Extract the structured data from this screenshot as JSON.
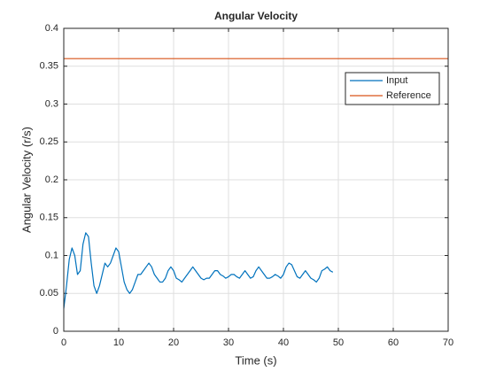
{
  "chart_data": {
    "type": "line",
    "title": "Angular Velocity",
    "xlabel": "Time (s)",
    "ylabel": "Angular Velocity (r/s)",
    "xlim": [
      0,
      70
    ],
    "xticks": [
      0,
      10,
      20,
      30,
      40,
      50,
      60,
      70
    ],
    "ylim": [
      0,
      0.4
    ],
    "yticks": [
      0,
      0.05,
      0.1,
      0.15,
      0.2,
      0.25,
      0.3,
      0.35,
      0.4
    ],
    "grid": true,
    "legend": "northeast",
    "series": [
      {
        "name": "Input",
        "color": "#0072bd",
        "x": [
          0,
          0.5,
          1,
          1.5,
          2,
          2.5,
          3,
          3.5,
          4,
          4.5,
          5,
          5.5,
          6,
          6.5,
          7,
          7.5,
          8,
          8.5,
          9,
          9.5,
          10,
          10.5,
          11,
          11.5,
          12,
          12.5,
          13,
          13.5,
          14,
          14.5,
          15,
          15.5,
          16,
          16.5,
          17,
          17.5,
          18,
          18.5,
          19,
          19.5,
          20,
          20.5,
          21,
          21.5,
          22,
          22.5,
          23,
          23.5,
          24,
          24.5,
          25,
          25.5,
          26,
          26.5,
          27,
          27.5,
          28,
          28.5,
          29,
          29.5,
          30,
          30.5,
          31,
          31.5,
          32,
          32.5,
          33,
          33.5,
          34,
          34.5,
          35,
          35.5,
          36,
          36.5,
          37,
          37.5,
          38,
          38.5,
          39,
          39.5,
          40,
          40.5,
          41,
          41.5,
          42,
          42.5,
          43,
          43.5,
          44,
          44.5,
          45,
          45.5,
          46,
          46.5,
          47,
          47.5,
          48,
          48.5,
          49
        ],
        "values": [
          0.03,
          0.06,
          0.095,
          0.11,
          0.1,
          0.075,
          0.08,
          0.115,
          0.13,
          0.125,
          0.09,
          0.06,
          0.05,
          0.06,
          0.075,
          0.09,
          0.085,
          0.09,
          0.1,
          0.11,
          0.105,
          0.085,
          0.065,
          0.055,
          0.05,
          0.055,
          0.065,
          0.075,
          0.075,
          0.08,
          0.085,
          0.09,
          0.085,
          0.075,
          0.07,
          0.065,
          0.065,
          0.07,
          0.08,
          0.085,
          0.08,
          0.07,
          0.068,
          0.065,
          0.07,
          0.075,
          0.08,
          0.085,
          0.08,
          0.075,
          0.07,
          0.068,
          0.07,
          0.07,
          0.075,
          0.08,
          0.08,
          0.075,
          0.073,
          0.07,
          0.072,
          0.075,
          0.075,
          0.072,
          0.07,
          0.075,
          0.08,
          0.075,
          0.07,
          0.072,
          0.08,
          0.085,
          0.08,
          0.075,
          0.07,
          0.07,
          0.072,
          0.075,
          0.073,
          0.07,
          0.075,
          0.085,
          0.09,
          0.088,
          0.08,
          0.072,
          0.07,
          0.075,
          0.08,
          0.075,
          0.07,
          0.068,
          0.065,
          0.07,
          0.08,
          0.082,
          0.085,
          0.08,
          0.078
        ]
      },
      {
        "name": "Reference",
        "color": "#d95319",
        "x": [
          0,
          70
        ],
        "values": [
          0.36,
          0.36
        ]
      }
    ]
  }
}
